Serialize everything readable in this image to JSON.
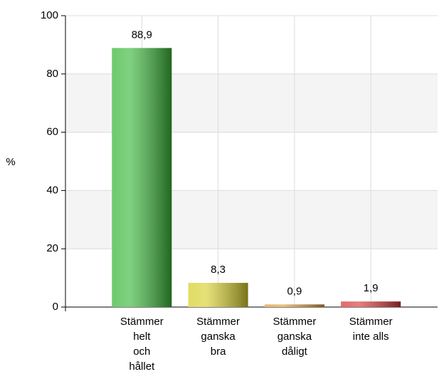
{
  "chart_data": {
    "type": "bar",
    "y_label": "%",
    "categories": [
      [
        "Stämmer",
        "helt",
        "och",
        "hållet"
      ],
      [
        "Stämmer",
        "ganska",
        "bra"
      ],
      [
        "Stämmer",
        "ganska",
        "dåligt"
      ],
      [
        "Stämmer",
        "inte alls"
      ]
    ],
    "values": [
      88.9,
      8.3,
      0.9,
      1.9
    ],
    "value_labels": [
      "88,9",
      "8,3",
      "0,9",
      "1,9"
    ],
    "colors": [
      "#3cb83c",
      "#d8d030",
      "#e0a040",
      "#d83838"
    ],
    "ylim": [
      0,
      100
    ],
    "yticks": [
      0,
      20,
      40,
      60,
      80,
      100
    ],
    "grid": true
  }
}
